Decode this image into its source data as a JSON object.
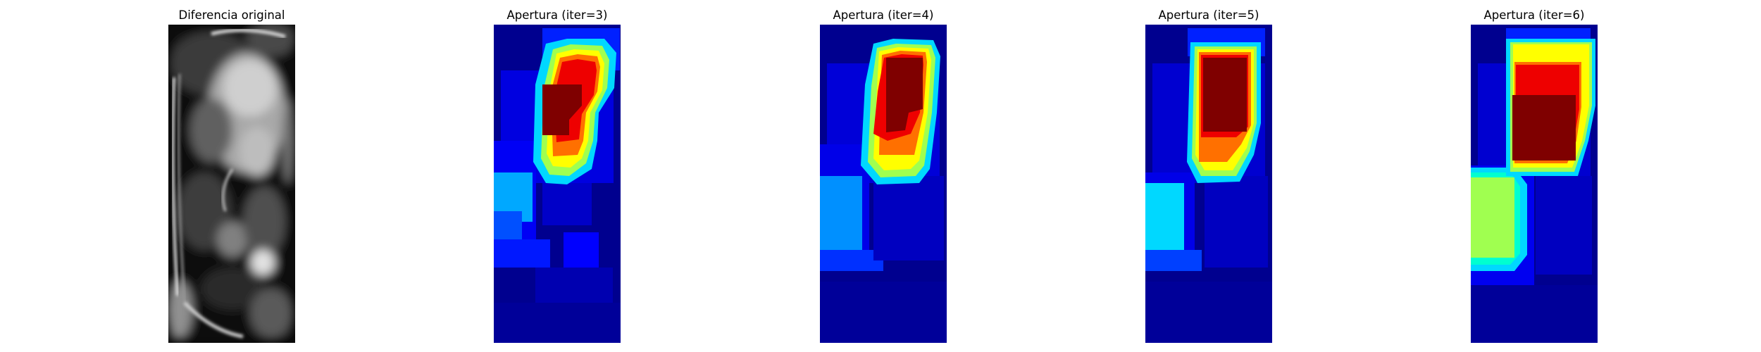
{
  "figure": {
    "panels": [
      {
        "title": "Diferencia original",
        "kind": "grayscale",
        "colormap": "gray"
      },
      {
        "title": "Apertura (iter=3)",
        "kind": "heatmap",
        "colormap": "jet",
        "iterations": 3
      },
      {
        "title": "Apertura (iter=4)",
        "kind": "heatmap",
        "colormap": "jet",
        "iterations": 4
      },
      {
        "title": "Apertura (iter=5)",
        "kind": "heatmap",
        "colormap": "jet",
        "iterations": 5
      },
      {
        "title": "Apertura (iter=6)",
        "kind": "heatmap",
        "colormap": "jet",
        "iterations": 6
      }
    ]
  },
  "colors": {
    "background": "#ffffff",
    "jet_navy": "#00008f",
    "jet_blue": "#0000ff",
    "jet_mid_blue": "#0050ff",
    "jet_cyan": "#00d8ff",
    "jet_green": "#a0ff50",
    "jet_yellow": "#ffff00",
    "jet_orange": "#ff7000",
    "jet_red": "#ee0000",
    "jet_darkred": "#7f0000"
  }
}
